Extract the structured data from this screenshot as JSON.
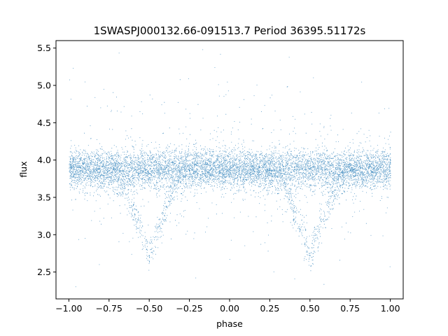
{
  "chart_data": {
    "type": "scatter",
    "title": "1SWASPJ000132.66-091513.7 Period 36395.51172s",
    "xlabel": "phase",
    "ylabel": "flux",
    "xlim": [
      -1.08,
      1.08
    ],
    "ylim": [
      2.14,
      5.6
    ],
    "grid": false,
    "legend": "none",
    "point_color": "#1f77b4",
    "x_ticks": [
      -1.0,
      -0.75,
      -0.5,
      -0.25,
      0.0,
      0.25,
      0.5,
      0.75,
      1.0
    ],
    "x_tick_labels": [
      "−1.00",
      "−0.75",
      "−0.50",
      "−0.25",
      "0.00",
      "0.25",
      "0.50",
      "0.75",
      "1.00"
    ],
    "y_ticks": [
      2.5,
      3.0,
      3.5,
      4.0,
      4.5,
      5.0,
      5.5
    ],
    "y_tick_labels": [
      "2.5",
      "3.0",
      "3.5",
      "4.0",
      "4.5",
      "5.0",
      "5.5"
    ],
    "light_curve": {
      "baseline_flux": 3.88,
      "baseline_scatter": 0.13,
      "eclipse_centers": [
        -0.5,
        0.5
      ],
      "eclipse_min_flux": 2.7,
      "eclipse_half_width": 0.22,
      "points": [
        [
          -0.9,
          3.88
        ],
        [
          -0.75,
          3.86
        ],
        [
          -0.7,
          3.55
        ],
        [
          -0.6,
          3.2
        ],
        [
          -0.5,
          2.72
        ],
        [
          -0.4,
          3.2
        ],
        [
          -0.3,
          3.55
        ],
        [
          -0.25,
          3.86
        ],
        [
          -0.1,
          3.88
        ],
        [
          0.0,
          3.87
        ],
        [
          0.1,
          3.88
        ],
        [
          0.25,
          3.86
        ],
        [
          0.3,
          3.55
        ],
        [
          0.4,
          3.2
        ],
        [
          0.5,
          2.72
        ],
        [
          0.6,
          3.2
        ],
        [
          0.7,
          3.55
        ],
        [
          0.75,
          3.86
        ],
        [
          0.9,
          3.88
        ]
      ]
    }
  }
}
